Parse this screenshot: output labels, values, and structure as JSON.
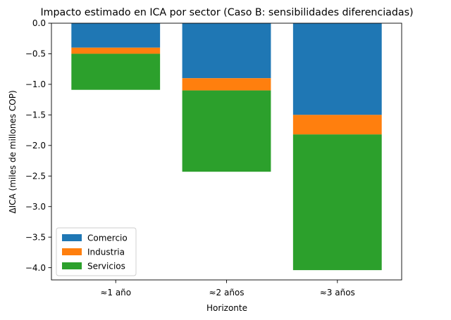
{
  "chart_data": {
    "type": "bar",
    "stacked": true,
    "title": "Impacto estimado en ICA por sector (Caso B: sensibilidades diferenciadas)",
    "xlabel": "Horizonte",
    "ylabel": "ΔICA (miles de millones COP)",
    "categories": [
      "≈1 año",
      "≈2 años",
      "≈3 años"
    ],
    "series": [
      {
        "name": "Comercio",
        "color": "#1f77b4",
        "values": [
          -0.4,
          -0.9,
          -1.5
        ]
      },
      {
        "name": "Industria",
        "color": "#ff7f0e",
        "values": [
          -0.1,
          -0.2,
          -0.32
        ]
      },
      {
        "name": "Servicios",
        "color": "#2ca02c",
        "values": [
          -0.59,
          -1.33,
          -2.22
        ]
      }
    ],
    "ylim": [
      -4.2,
      0.0
    ],
    "yticks": [
      0.0,
      -0.5,
      -1.0,
      -1.5,
      -2.0,
      -2.5,
      -3.0,
      -3.5,
      -4.0
    ],
    "ytick_labels": [
      "0.0",
      "−0.5",
      "−1.0",
      "−1.5",
      "−2.0",
      "−2.5",
      "−3.0",
      "−3.5",
      "−4.0"
    ],
    "grid": false,
    "legend_position": "bottom-left"
  }
}
